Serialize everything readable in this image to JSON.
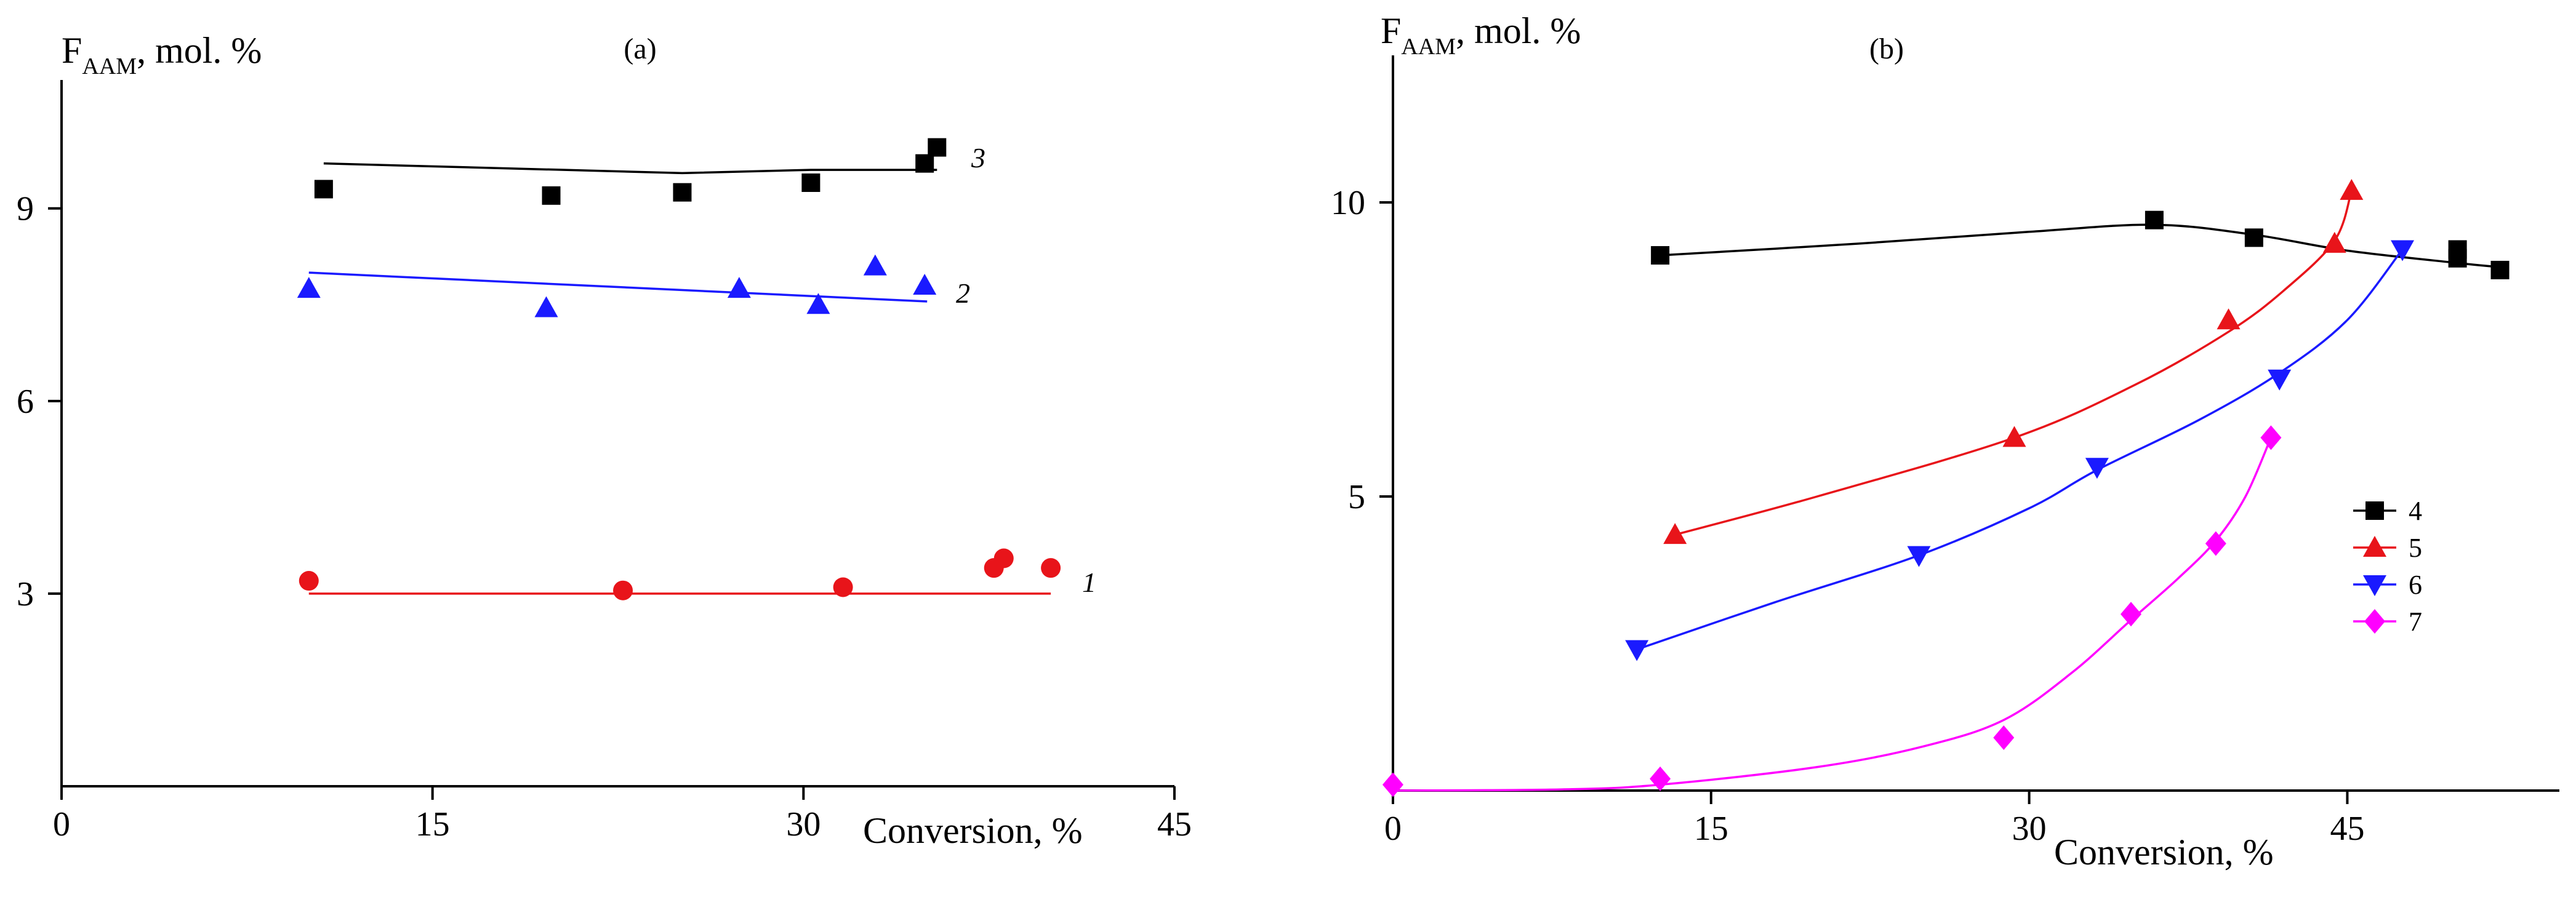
{
  "chart_data": [
    {
      "type": "scatter",
      "panel_label": "(a)",
      "ylabel_main": "F",
      "ylabel_sub": "AAM",
      "ylabel_rest": ", mol. %",
      "xlabel": "Conversion, %",
      "xlim": [
        0,
        45
      ],
      "ylim": [
        0,
        11
      ],
      "xticks": [
        0,
        15,
        30,
        45
      ],
      "yticks": [
        3,
        6,
        9
      ],
      "series": [
        {
          "name": "1",
          "label": "1",
          "color": "#e8141a",
          "marker": "circle",
          "x": [
            10.0,
            22.7,
            31.6,
            37.7,
            38.1,
            40.0
          ],
          "y": [
            3.2,
            3.05,
            3.1,
            3.4,
            3.55,
            3.4
          ],
          "fit_x": [
            10,
            40
          ],
          "fit_y": [
            3.0,
            3.0
          ]
        },
        {
          "name": "2",
          "label": "2",
          "color": "#1a1aff",
          "marker": "triangle-up",
          "x": [
            10.0,
            19.6,
            27.4,
            30.6,
            32.9,
            34.9
          ],
          "y": [
            7.75,
            7.45,
            7.75,
            7.5,
            8.1,
            7.8
          ],
          "fit_x": [
            10,
            35
          ],
          "fit_y": [
            8.0,
            7.55
          ]
        },
        {
          "name": "3",
          "label": "3",
          "color": "#000000",
          "marker": "square",
          "x": [
            10.6,
            19.8,
            25.1,
            30.3,
            34.9,
            35.4
          ],
          "y": [
            9.3,
            9.2,
            9.25,
            9.4,
            9.7,
            9.95
          ],
          "fit_x": [
            10.6,
            25.1,
            30.3,
            35.4
          ],
          "fit_y": [
            9.7,
            9.55,
            9.6,
            9.6
          ]
        }
      ]
    },
    {
      "type": "scatter",
      "panel_label": "(b)",
      "ylabel_main": "F",
      "ylabel_sub": "AAM",
      "ylabel_rest": ", mol. %",
      "xlabel": "Conversion, %",
      "xlim": [
        0,
        55
      ],
      "ylim": [
        0,
        12.5
      ],
      "xticks": [
        0,
        15,
        30,
        45
      ],
      "yticks": [
        5,
        10
      ],
      "legend_position": "right",
      "series": [
        {
          "name": "4",
          "label": "4",
          "color": "#000000",
          "marker": "square",
          "x": [
            12.6,
            35.9,
            40.6,
            50.2,
            50.2,
            52.2
          ],
          "y": [
            9.1,
            9.7,
            9.4,
            9.2,
            9.05,
            8.85
          ],
          "fit_x": [
            12.6,
            22,
            30,
            35.9,
            40.6,
            45,
            50.2,
            52.2
          ],
          "fit_y": [
            9.1,
            9.3,
            9.5,
            9.62,
            9.45,
            9.18,
            8.97,
            8.9
          ]
        },
        {
          "name": "5",
          "label": "5",
          "color": "#e8141a",
          "marker": "triangle-up",
          "x": [
            13.3,
            29.3,
            39.4,
            44.4,
            45.2
          ],
          "y": [
            4.35,
            6.0,
            8.0,
            9.3,
            10.2
          ],
          "fit_x": [
            13.3,
            20,
            29.3,
            35,
            39.4,
            42,
            44.4,
            45.2
          ],
          "fit_y": [
            4.35,
            5.0,
            6.0,
            6.9,
            7.8,
            8.5,
            9.35,
            10.2
          ]
        },
        {
          "name": "6",
          "label": "6",
          "color": "#1a1aff",
          "marker": "triangle-down",
          "x": [
            11.5,
            24.8,
            33.2,
            41.8,
            47.6
          ],
          "y": [
            2.4,
            4.0,
            5.5,
            7.0,
            9.2
          ],
          "fit_x": [
            11.5,
            18,
            24.8,
            30,
            33.2,
            38,
            41.8,
            45,
            47.6
          ],
          "fit_y": [
            2.4,
            3.2,
            4.0,
            4.8,
            5.45,
            6.3,
            7.1,
            8.0,
            9.2
          ]
        },
        {
          "name": "7",
          "label": "7",
          "color": "#ff00ff",
          "marker": "diamond",
          "x": [
            0,
            12.6,
            28.8,
            34.8,
            38.8,
            41.4
          ],
          "y": [
            0.1,
            0.2,
            0.9,
            3.0,
            4.2,
            6.0
          ],
          "fit_x": [
            0,
            8,
            12.6,
            20,
            25,
            28.8,
            32,
            34.8,
            37,
            38.8,
            40.2,
            41.4
          ],
          "fit_y": [
            0,
            0.02,
            0.1,
            0.4,
            0.75,
            1.2,
            2.0,
            2.9,
            3.6,
            4.25,
            5.0,
            6.0
          ]
        }
      ]
    }
  ]
}
